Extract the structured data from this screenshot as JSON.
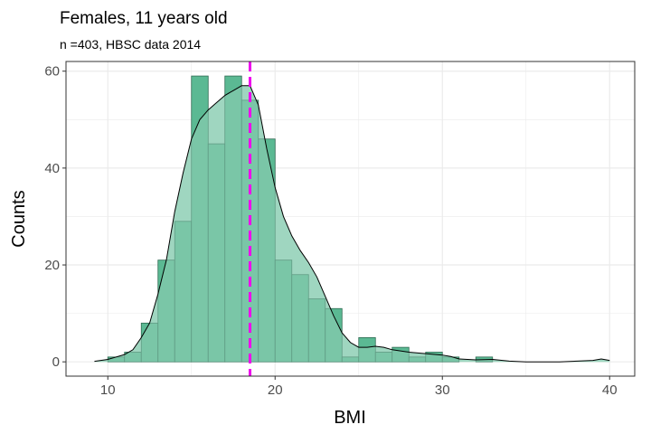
{
  "chart_data": {
    "type": "bar",
    "title": "Females, 11 years old",
    "subtitle": "n =403, HBSC data 2014",
    "xlabel": "BMI",
    "ylabel": "Counts",
    "xlim": [
      7.5,
      41.5
    ],
    "ylim": [
      -2.95,
      62.0
    ],
    "x_ticks": [
      10,
      20,
      30,
      40
    ],
    "y_ticks": [
      0,
      20,
      40,
      60
    ],
    "grid": true,
    "bin_width": 1,
    "bins": [
      {
        "x0": 10,
        "x1": 11,
        "count": 1
      },
      {
        "x0": 11,
        "x1": 12,
        "count": 2
      },
      {
        "x0": 12,
        "x1": 13,
        "count": 8
      },
      {
        "x0": 13,
        "x1": 14,
        "count": 21
      },
      {
        "x0": 14,
        "x1": 15,
        "count": 29
      },
      {
        "x0": 15,
        "x1": 16,
        "count": 59
      },
      {
        "x0": 16,
        "x1": 17,
        "count": 45
      },
      {
        "x0": 17,
        "x1": 18,
        "count": 59
      },
      {
        "x0": 18,
        "x1": 19,
        "count": 54
      },
      {
        "x0": 19,
        "x1": 20,
        "count": 46
      },
      {
        "x0": 20,
        "x1": 21,
        "count": 21
      },
      {
        "x0": 21,
        "x1": 22,
        "count": 18
      },
      {
        "x0": 22,
        "x1": 23,
        "count": 13
      },
      {
        "x0": 23,
        "x1": 24,
        "count": 11
      },
      {
        "x0": 24,
        "x1": 25,
        "count": 1
      },
      {
        "x0": 25,
        "x1": 26,
        "count": 5
      },
      {
        "x0": 26,
        "x1": 27,
        "count": 2
      },
      {
        "x0": 27,
        "x1": 28,
        "count": 3
      },
      {
        "x0": 28,
        "x1": 29,
        "count": 1
      },
      {
        "x0": 29,
        "x1": 30,
        "count": 2
      },
      {
        "x0": 30,
        "x1": 31,
        "count": 1
      },
      {
        "x0": 32,
        "x1": 33,
        "count": 1
      }
    ],
    "density_curve": [
      [
        9.2,
        0.1
      ],
      [
        10,
        0.5
      ],
      [
        11,
        1.5
      ],
      [
        11.5,
        2.5
      ],
      [
        12,
        5
      ],
      [
        12.5,
        8
      ],
      [
        13,
        14
      ],
      [
        13.5,
        21
      ],
      [
        14,
        31
      ],
      [
        14.5,
        39
      ],
      [
        15,
        46
      ],
      [
        15.5,
        50
      ],
      [
        16,
        52
      ],
      [
        16.5,
        53.5
      ],
      [
        17,
        55
      ],
      [
        17.5,
        56
      ],
      [
        18,
        57
      ],
      [
        18.5,
        57
      ],
      [
        19,
        53
      ],
      [
        19.5,
        44
      ],
      [
        20,
        36
      ],
      [
        20.5,
        30
      ],
      [
        21,
        26
      ],
      [
        21.5,
        23
      ],
      [
        22,
        20.5
      ],
      [
        22.5,
        17.5
      ],
      [
        23,
        13.5
      ],
      [
        23.5,
        9.5
      ],
      [
        24,
        6
      ],
      [
        24.5,
        4
      ],
      [
        25,
        3
      ],
      [
        25.5,
        3
      ],
      [
        26,
        3.2
      ],
      [
        26.5,
        3
      ],
      [
        27,
        2.5
      ],
      [
        28,
        2
      ],
      [
        29,
        1.7
      ],
      [
        30,
        1.4
      ],
      [
        30.5,
        1.1
      ],
      [
        31,
        0.6
      ],
      [
        32,
        0.4
      ],
      [
        33,
        0.5
      ],
      [
        34,
        0.15
      ],
      [
        35,
        0
      ],
      [
        37,
        0
      ],
      [
        39,
        0.3
      ],
      [
        39.5,
        0.6
      ],
      [
        40,
        0.3
      ]
    ],
    "reference_line": {
      "x": 18.5,
      "style": "dashed"
    },
    "colors": {
      "bar_fill": "#5bb993",
      "bar_stroke": "#2e6a52",
      "density_fill": "#9fd6c0",
      "density_stroke": "#000000",
      "reference_line": "#ee00ee",
      "grid": "#ebebeb",
      "panel_border": "#333333",
      "tick_label": "#4d4d4d"
    }
  }
}
